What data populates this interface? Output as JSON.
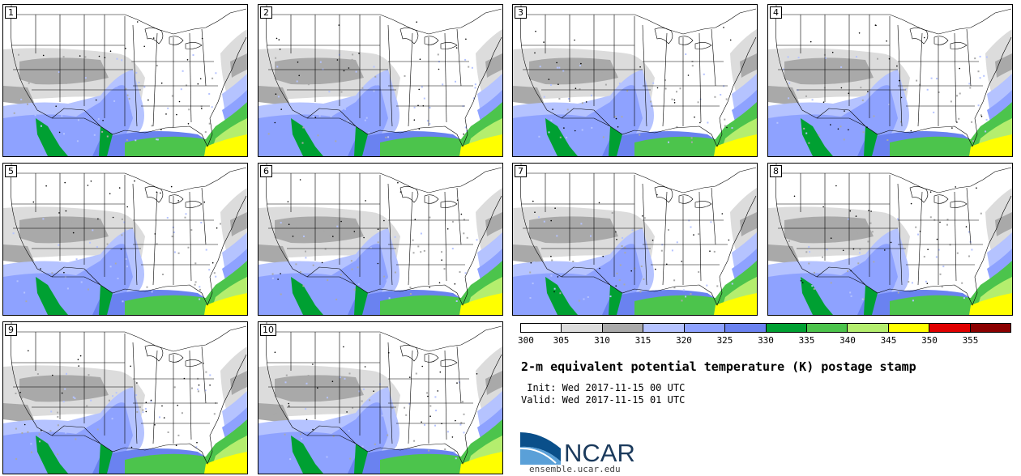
{
  "panels": [
    "1",
    "2",
    "3",
    "4",
    "5",
    "6",
    "7",
    "8",
    "9",
    "10"
  ],
  "legend": {
    "ticks": [
      "300",
      "305",
      "310",
      "315",
      "320",
      "325",
      "330",
      "335",
      "340",
      "345",
      "350",
      "355"
    ],
    "colors": [
      "#ffffff",
      "#dcdcdc",
      "#a9a9a9",
      "#b5c3ff",
      "#8ea2ff",
      "#6a82f0",
      "#00a032",
      "#4cc44c",
      "#b4ee6e",
      "#ffff00",
      "#e00000",
      "#8b0000"
    ]
  },
  "title": "2-m equivalent potential temperature (K) postage stamp",
  "init": " Init: Wed 2017-11-15 00 UTC",
  "valid": "Valid: Wed 2017-11-15 01 UTC",
  "logo_text": "NCAR",
  "url": "ensemble.ucar.edu"
}
